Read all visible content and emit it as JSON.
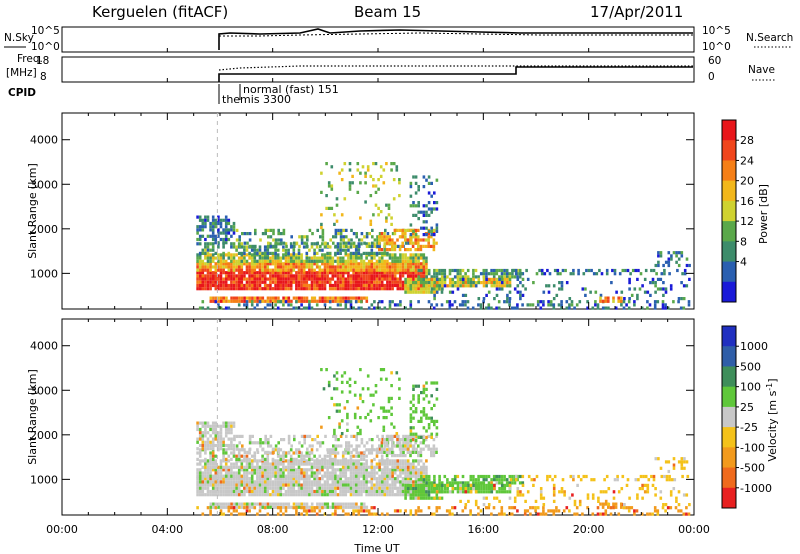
{
  "header": {
    "station": "Kerguelen (fitACF)",
    "beam": "Beam 15",
    "date": "17/Apr/2011"
  },
  "panels": {
    "nsky_label": "N.Sky",
    "nsky_ticks": [
      "10^5",
      "10^0"
    ],
    "nsearch_ticks": [
      "10^5",
      "10^0"
    ],
    "nsearch_label": "N.Search",
    "freq_label_line1": "Freq.",
    "freq_label_line2": "[MHz]",
    "freq_ticks": [
      "18",
      "8"
    ],
    "nave_ticks": [
      "60",
      "0"
    ],
    "nave_label": "Nave",
    "cpid_label": "CPID",
    "cpid_entries": [
      "normal (fast) 151",
      "themis 3300"
    ]
  },
  "chart_data": [
    {
      "type": "heatmap",
      "name": "power",
      "ylabel": "Slant Range [km]",
      "xlabel": "",
      "y_ticks": [
        "1000",
        "2000",
        "3000",
        "4000"
      ],
      "ylim": [
        200,
        4600
      ],
      "xlim": [
        0,
        24
      ],
      "colorbar_label": "Power [dB]",
      "colorbar_ticks": [
        "28",
        "24",
        "20",
        "16",
        "12",
        "8",
        "4"
      ],
      "colorbar_colors": [
        "#e8161b",
        "#f0451c",
        "#f57f17",
        "#f2b71b",
        "#cfd230",
        "#5aa84a",
        "#3d8c6b",
        "#2a5fb0",
        "#1a1ad8"
      ]
    },
    {
      "type": "heatmap",
      "name": "velocity",
      "ylabel": "Slant Range [km]",
      "xlabel": "Time UT",
      "x_ticks": [
        "00:00",
        "04:00",
        "08:00",
        "12:00",
        "16:00",
        "20:00",
        "00:00"
      ],
      "y_ticks": [
        "1000",
        "2000",
        "3000",
        "4000"
      ],
      "ylim": [
        200,
        4600
      ],
      "xlim": [
        0,
        24
      ],
      "colorbar_label": "Velocity [m s^-1]",
      "colorbar_ticks": [
        "1000",
        "500",
        "100",
        "25",
        "-25",
        "-100",
        "-500",
        "-1000"
      ],
      "colorbar_colors": [
        "#2030c0",
        "#2f5ea8",
        "#3e8e5a",
        "#5fc73a",
        "#c8c8c8",
        "#f4c21a",
        "#f29a1c",
        "#ef6a1c",
        "#e82020"
      ]
    }
  ]
}
